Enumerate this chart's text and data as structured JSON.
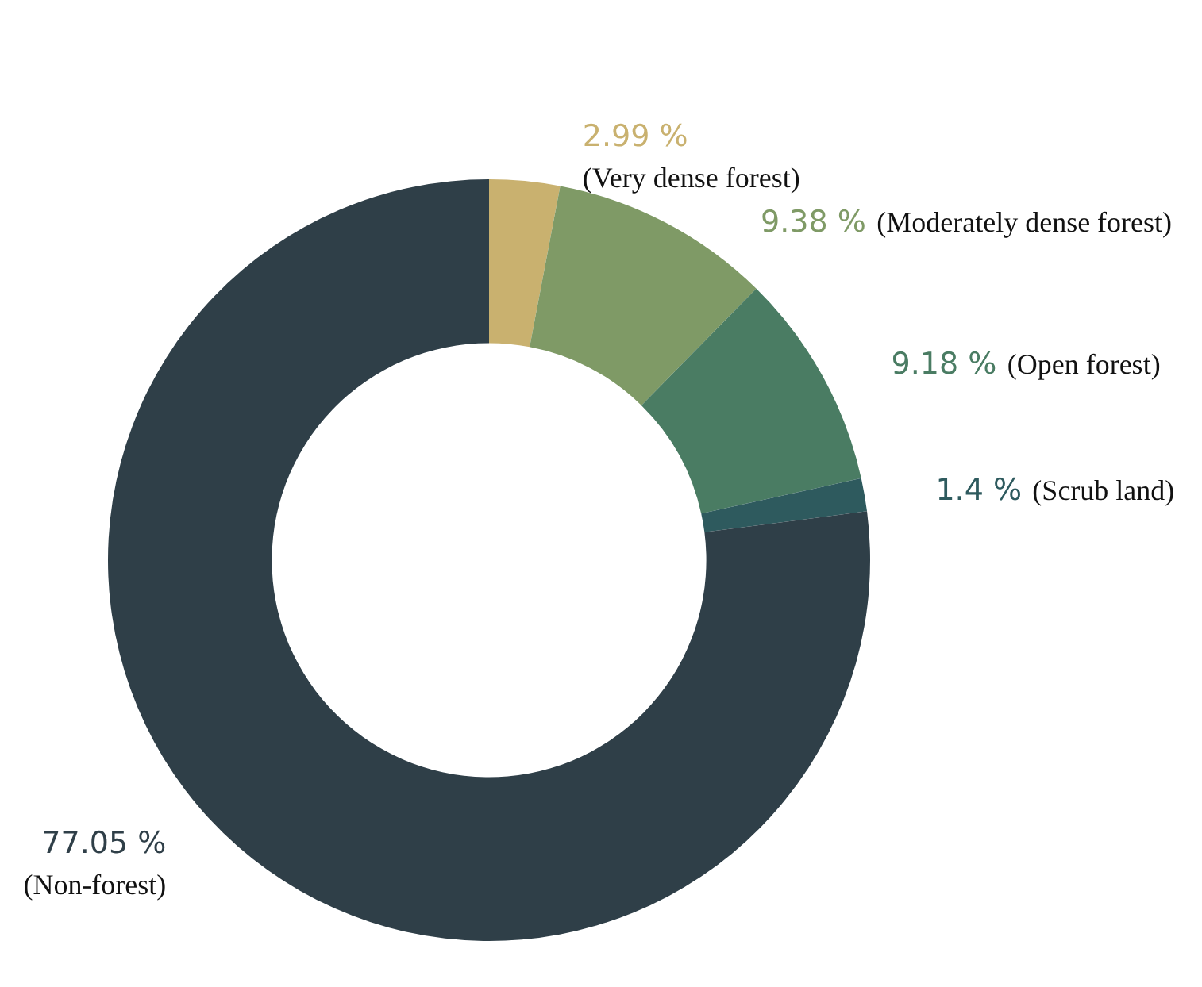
{
  "chart_data": {
    "type": "donut",
    "categories": [
      "(Very dense forest)",
      "(Moderately dense forest)",
      "(Open forest)",
      "(Scrub land)",
      "(Non-forest)"
    ],
    "values": [
      2.99,
      9.38,
      9.18,
      1.4,
      77.05
    ],
    "value_labels": [
      "2.99 %",
      "9.38 %",
      "9.18 %",
      "1.4 %",
      "77.05 %"
    ],
    "colors": [
      "#c9b16f",
      "#7f9a66",
      "#4a7c63",
      "#2e5a5e",
      "#2f3f48"
    ],
    "legend": false
  }
}
